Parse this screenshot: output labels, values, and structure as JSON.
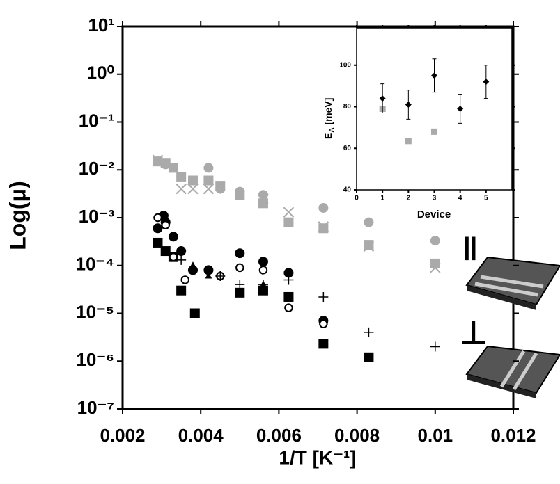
{
  "chart_data": [
    {
      "type": "scatter",
      "ylabel": "Log(μ)",
      "xlabel": "1/T [K⁻¹]",
      "ylog": true,
      "xlim": [
        0.002,
        0.012
      ],
      "xticks": [
        0.002,
        0.004,
        0.006,
        0.008,
        0.01,
        0.012
      ],
      "ylim": [
        1e-07,
        10
      ],
      "yticks": [
        {
          "value": 1e-07,
          "label": "10⁻⁷"
        },
        {
          "value": 1e-06,
          "label": "10⁻⁶"
        },
        {
          "value": 1e-05,
          "label": "10⁻⁵"
        },
        {
          "value": 0.0001,
          "label": "10⁻⁴"
        },
        {
          "value": 0.001,
          "label": "10⁻³"
        },
        {
          "value": 0.01,
          "label": "10⁻²"
        },
        {
          "value": 0.1,
          "label": "10⁻¹"
        },
        {
          "value": 1,
          "label": "10⁰"
        },
        {
          "value": 10,
          "label": "10¹"
        }
      ],
      "annotations": [
        "‖",
        "⊥"
      ],
      "series": [
        {
          "color": "#aaaaaa",
          "marker": "square",
          "x": [
            0.0029,
            0.0031,
            0.0033,
            0.0035,
            0.0038,
            0.0042,
            0.0045,
            0.005,
            0.0056,
            0.00625,
            0.00714,
            0.0083,
            0.01
          ],
          "values": [
            0.015,
            0.014,
            0.011,
            0.007,
            0.006,
            0.006,
            0.0045,
            0.003,
            0.002,
            0.0008,
            0.0006,
            0.00027,
            0.00011
          ]
        },
        {
          "color": "#aaaaaa",
          "marker": "cross",
          "x": [
            0.0029,
            0.0035,
            0.0038,
            0.0042,
            0.0056,
            0.00625,
            0.00714,
            0.0083,
            0.01
          ],
          "values": [
            0.016,
            0.004,
            0.004,
            0.004,
            0.0025,
            0.0013,
            0.00065,
            0.00025,
            9e-05
          ]
        },
        {
          "color": "#aaaaaa",
          "marker": "circle",
          "x": [
            0.0029,
            0.0031,
            0.0042,
            0.0045,
            0.005,
            0.0056,
            0.00714,
            0.0083,
            0.01
          ],
          "values": [
            0.015,
            0.013,
            0.011,
            0.004,
            0.0035,
            0.003,
            0.0016,
            0.0008,
            0.00033
          ]
        },
        {
          "color": "#000000",
          "marker": "square",
          "x": [
            0.0029,
            0.0031,
            0.0033,
            0.0035,
            0.00385,
            0.005,
            0.0056,
            0.00625,
            0.00714,
            0.0083
          ],
          "values": [
            0.0003,
            0.0002,
            0.00015,
            3e-05,
            1e-05,
            2.7e-05,
            3e-05,
            2.2e-05,
            2.3e-06,
            1.2e-06
          ]
        },
        {
          "color": "#000000",
          "marker": "circle",
          "x": [
            0.0029,
            0.00305,
            0.0031,
            0.0033,
            0.0035,
            0.0038,
            0.0042,
            0.005,
            0.0056,
            0.00625,
            0.00714
          ],
          "values": [
            0.0006,
            0.0011,
            0.0008,
            0.0004,
            0.0002,
            8e-05,
            8e-05,
            0.00018,
            0.00012,
            7e-05,
            7e-06
          ]
        },
        {
          "color": "#000000",
          "marker": "open-circle",
          "x": [
            0.0029,
            0.0031,
            0.0033,
            0.0036,
            0.0045,
            0.005,
            0.0056,
            0.00625,
            0.00714
          ],
          "values": [
            0.001,
            0.0007,
            0.00015,
            5e-05,
            6e-05,
            9e-05,
            8e-05,
            1.3e-05,
            6e-06
          ]
        },
        {
          "color": "#000000",
          "marker": "triangle",
          "x": [
            0.0038,
            0.0042,
            0.0056
          ],
          "values": [
            0.0001,
            6e-05,
            4e-05
          ]
        },
        {
          "color": "#000000",
          "marker": "plus",
          "x": [
            0.0035,
            0.0038,
            0.0045,
            0.005,
            0.0056,
            0.00625,
            0.00714,
            0.0083,
            0.01
          ],
          "values": [
            0.00013,
            8e-05,
            6e-05,
            4e-05,
            4e-05,
            5e-05,
            2.2e-05,
            4e-06,
            2e-06
          ]
        }
      ]
    },
    {
      "type": "scatter",
      "xlabel": "Device",
      "ylabel_parts": [
        "E",
        "A",
        " [meV]"
      ],
      "xlim": [
        0,
        6
      ],
      "xticks": [
        0,
        1,
        2,
        3,
        4,
        5
      ],
      "ylim": [
        40,
        118
      ],
      "yticks": [
        40,
        60,
        80,
        100
      ],
      "series": [
        {
          "color": "#aaaaaa",
          "marker": "square",
          "x": [
            1,
            2,
            3
          ],
          "values": [
            79,
            63.5,
            68
          ]
        },
        {
          "color": "#000000",
          "marker": "diamond",
          "x": [
            1,
            2,
            3,
            4,
            5
          ],
          "values": [
            84,
            81,
            95,
            79,
            92
          ],
          "errors": [
            7,
            7,
            8,
            7,
            8
          ]
        }
      ]
    }
  ]
}
